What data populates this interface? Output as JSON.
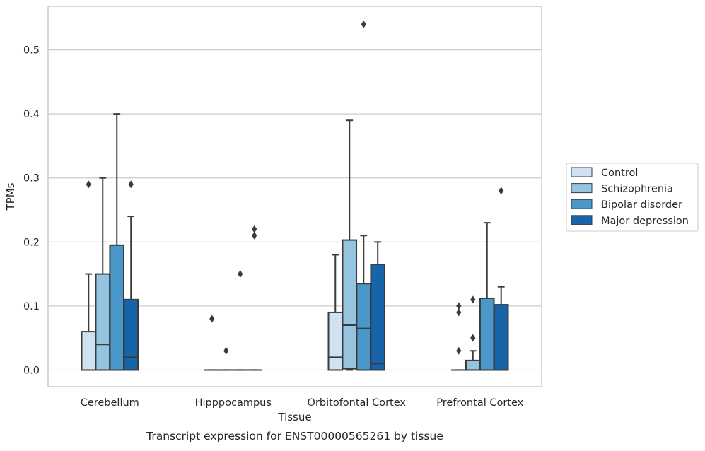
{
  "chart_data": {
    "type": "box",
    "caption": "Transcript expression for ENST00000565261 by tissue",
    "xlabel": "Tissue",
    "ylabel": "TPMs",
    "ylim": [
      -0.026,
      0.568
    ],
    "yticks": [
      0.0,
      0.1,
      0.2,
      0.3,
      0.4,
      0.5
    ],
    "ytick_labels": [
      "0.0",
      "0.1",
      "0.2",
      "0.3",
      "0.4",
      "0.5"
    ],
    "grid": "horizontal",
    "legend_position": "right-outside",
    "categories": [
      "Cerebellum",
      "Hipppocampus",
      "Orbitofontal Cortex",
      "Prefrontal Cortex"
    ],
    "series": [
      {
        "name": "Control",
        "color": "#d0e1f2",
        "boxes": [
          {
            "q1": 0.0,
            "median": 0.0,
            "q3": 0.06,
            "whisker_low": 0.0,
            "whisker_high": 0.15,
            "outliers": [
              0.29
            ]
          },
          {
            "q1": 0.0,
            "median": 0.0,
            "q3": 0.0,
            "whisker_low": 0.0,
            "whisker_high": 0.0,
            "outliers": [
              0.08
            ]
          },
          {
            "q1": 0.0,
            "median": 0.02,
            "q3": 0.09,
            "whisker_low": 0.0,
            "whisker_high": 0.18,
            "outliers": []
          },
          {
            "q1": 0.0,
            "median": 0.0,
            "q3": 0.0,
            "whisker_low": 0.0,
            "whisker_high": 0.0,
            "outliers": [
              0.03,
              0.09,
              0.1
            ]
          }
        ]
      },
      {
        "name": "Schizophrenia",
        "color": "#94c4df",
        "boxes": [
          {
            "q1": 0.0,
            "median": 0.04,
            "q3": 0.15,
            "whisker_low": 0.0,
            "whisker_high": 0.3,
            "outliers": []
          },
          {
            "q1": 0.0,
            "median": 0.0,
            "q3": 0.0,
            "whisker_low": 0.0,
            "whisker_high": 0.0,
            "outliers": [
              0.03
            ]
          },
          {
            "q1": 0.002,
            "median": 0.07,
            "q3": 0.203,
            "whisker_low": 0.0,
            "whisker_high": 0.39,
            "outliers": []
          },
          {
            "q1": 0.0,
            "median": 0.0,
            "q3": 0.015,
            "whisker_low": 0.0,
            "whisker_high": 0.03,
            "outliers": [
              0.05,
              0.11
            ]
          }
        ]
      },
      {
        "name": "Bipolar disorder",
        "color": "#4a98c9",
        "boxes": [
          {
            "q1": 0.0,
            "median": 0.0,
            "q3": 0.195,
            "whisker_low": 0.0,
            "whisker_high": 0.4,
            "outliers": []
          },
          {
            "q1": 0.0,
            "median": 0.0,
            "q3": 0.0,
            "whisker_low": 0.0,
            "whisker_high": 0.0,
            "outliers": [
              0.15
            ]
          },
          {
            "q1": 0.0,
            "median": 0.065,
            "q3": 0.135,
            "whisker_low": 0.0,
            "whisker_high": 0.21,
            "outliers": [
              0.54
            ]
          },
          {
            "q1": 0.0,
            "median": 0.0,
            "q3": 0.112,
            "whisker_low": 0.0,
            "whisker_high": 0.23,
            "outliers": []
          }
        ]
      },
      {
        "name": "Major depression",
        "color": "#1764ab",
        "boxes": [
          {
            "q1": 0.0,
            "median": 0.02,
            "q3": 0.11,
            "whisker_low": 0.0,
            "whisker_high": 0.24,
            "outliers": [
              0.29
            ]
          },
          {
            "q1": 0.0,
            "median": 0.0,
            "q3": 0.0,
            "whisker_low": 0.0,
            "whisker_high": 0.0,
            "outliers": [
              0.21,
              0.22
            ]
          },
          {
            "q1": 0.0,
            "median": 0.01,
            "q3": 0.165,
            "whisker_low": 0.0,
            "whisker_high": 0.2,
            "outliers": []
          },
          {
            "q1": 0.0,
            "median": 0.0,
            "q3": 0.102,
            "whisker_low": 0.0,
            "whisker_high": 0.13,
            "outliers": [
              0.28
            ]
          }
        ]
      }
    ]
  }
}
